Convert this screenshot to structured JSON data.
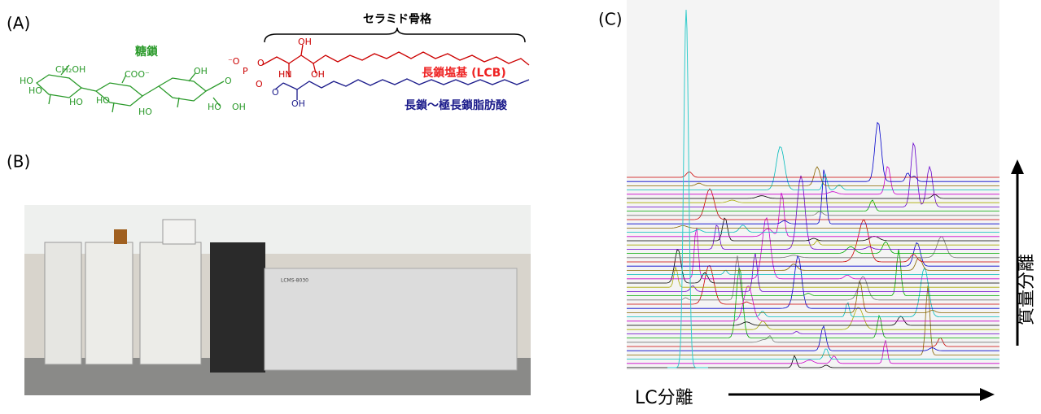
{
  "panels": {
    "a": "(A)",
    "b": "(B)",
    "c": "(C)"
  },
  "structure": {
    "ceramide": "セラミド骨格",
    "glycan": "糖鎖",
    "lcb": "長鎖塩基 (LCB)",
    "fatty_acid": "長鎖～極長鎖脂肪酸",
    "atoms": [
      "HO",
      "CH₂OH",
      "HO",
      "HO",
      "COO⁻",
      "HO",
      "OH",
      "HO",
      "HO",
      "OH",
      "O",
      "⁻O",
      "P",
      "O",
      "O",
      "OH",
      "HN",
      "OH",
      "O",
      "OH"
    ]
  },
  "instrument": {
    "model": "LCMS-8030"
  },
  "chromatogram": {
    "x_axis": "LC分離",
    "y_axis": "質量分離"
  }
}
